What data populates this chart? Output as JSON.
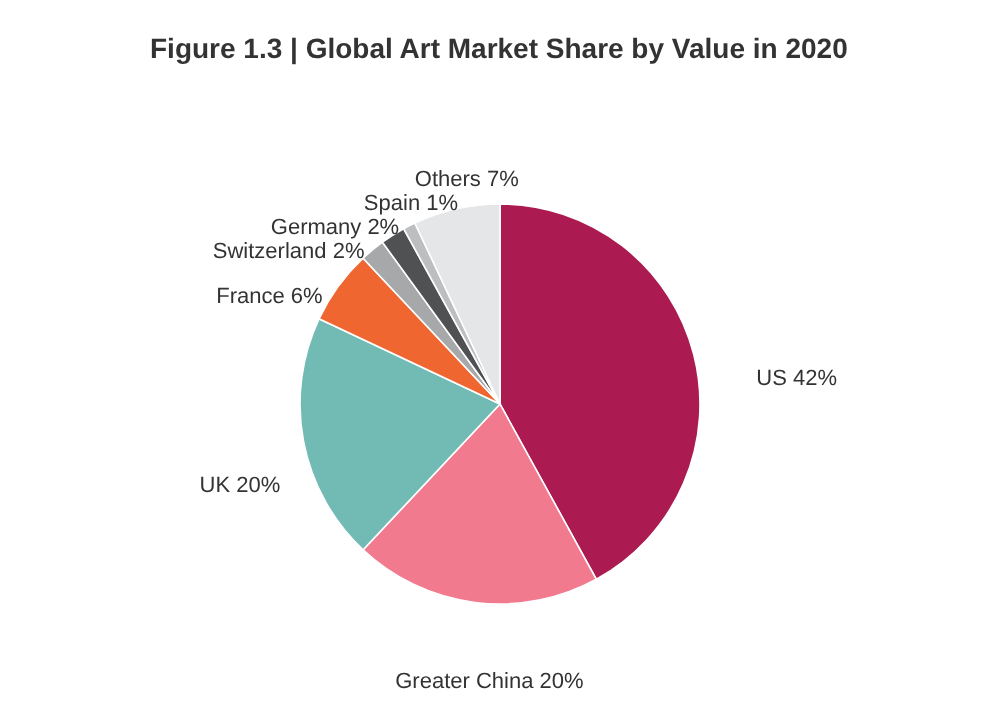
{
  "chart_data": {
    "type": "pie",
    "title": "Figure 1.3 | Global Art Market Share by Value in 2020",
    "categories": [
      "US",
      "Greater China",
      "UK",
      "France",
      "Switzerland",
      "Germany",
      "Spain",
      "Others"
    ],
    "values": [
      42,
      20,
      20,
      6,
      2,
      2,
      1,
      7
    ],
    "value_labels": [
      "42%",
      "20%",
      "20%",
      "6%",
      "2%",
      "2%",
      "1%",
      "7%"
    ],
    "colors": [
      "#ab1b51",
      "#f27a8f",
      "#72bbb5",
      "#ef6630",
      "#a7a8aa",
      "#4f5153",
      "#bcbec0",
      "#e5e6e8"
    ]
  }
}
